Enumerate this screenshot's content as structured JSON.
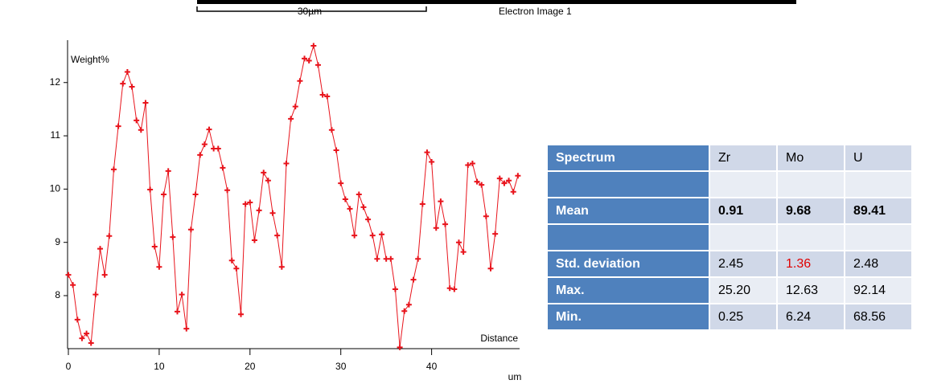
{
  "header": {
    "scale_label": "30µm",
    "image_label": "Electron Image 1"
  },
  "chart_data": {
    "type": "line",
    "y_label": "Weight%",
    "x_label": "Distance",
    "x_unit": "um",
    "x": [
      0,
      0.5,
      1,
      1.5,
      2,
      2.5,
      3,
      3.5,
      4,
      4.5,
      5,
      5.5,
      6,
      6.5,
      7,
      7.5,
      8,
      8.5,
      9,
      9.5,
      10,
      10.5,
      11,
      11.5,
      12,
      12.5,
      13,
      13.5,
      14,
      14.5,
      15,
      15.5,
      16,
      16.5,
      17,
      17.5,
      18,
      18.5,
      19,
      19.5,
      20,
      20.5,
      21,
      21.5,
      22,
      22.5,
      23,
      23.5,
      24,
      24.5,
      25,
      25.5,
      26,
      26.5,
      27,
      27.5,
      28,
      28.5,
      29,
      29.5,
      30,
      30.5,
      31,
      31.5,
      32,
      32.5,
      33,
      33.5,
      34,
      34.5,
      35,
      35.5,
      36,
      36.5,
      37,
      37.5,
      38,
      38.5,
      39,
      39.5,
      40,
      40.5,
      41,
      41.5,
      42,
      42.5,
      43,
      43.5,
      44,
      44.5,
      45,
      45.5,
      46,
      46.5,
      47,
      47.5,
      48,
      48.5,
      49,
      49.5
    ],
    "series": [
      {
        "name": "Weight%",
        "color": "#e8141c",
        "values": [
          8.39,
          8.2,
          7.55,
          7.2,
          7.29,
          7.11,
          8.02,
          8.88,
          8.39,
          9.12,
          10.37,
          11.18,
          11.98,
          12.2,
          11.92,
          11.29,
          11.11,
          11.62,
          9.99,
          8.92,
          8.54,
          9.9,
          10.34,
          9.1,
          7.7,
          8.02,
          7.38,
          9.24,
          9.9,
          10.64,
          10.84,
          11.12,
          10.76,
          10.76,
          10.4,
          9.98,
          8.66,
          8.51,
          7.65,
          9.72,
          9.75,
          9.04,
          9.6,
          10.31,
          10.16,
          9.55,
          9.13,
          8.54,
          10.48,
          11.32,
          11.55,
          12.03,
          12.45,
          12.41,
          12.69,
          12.33,
          11.77,
          11.74,
          11.11,
          10.73,
          10.11,
          9.81,
          9.63,
          9.13,
          9.9,
          9.66,
          9.43,
          9.13,
          8.69,
          9.15,
          8.69,
          8.69,
          8.12,
          7.03,
          7.71,
          7.83,
          8.3,
          8.69,
          9.72,
          10.69,
          10.51,
          9.27,
          9.77,
          9.34,
          8.14,
          8.12,
          9.0,
          8.82,
          10.45,
          10.48,
          10.14,
          10.08,
          9.49,
          8.51,
          9.16,
          10.2,
          10.11,
          10.16,
          9.95,
          10.25
        ]
      }
    ],
    "xlim": [
      0,
      49.6
    ],
    "ylim": [
      7.02,
      12.72
    ],
    "xticks": [
      0,
      10,
      20,
      30,
      40
    ],
    "yticks": [
      8,
      9,
      10,
      11,
      12
    ]
  },
  "table": {
    "columns": [
      "Spectrum",
      "Zr",
      "Mo",
      "U"
    ],
    "rows": [
      [
        "Mean",
        "0.91",
        "9.68",
        "89.41"
      ],
      [
        "Std. deviation",
        "2.45",
        "1.36",
        "2.48"
      ],
      [
        "Max.",
        "25.20",
        "12.63",
        "92.14"
      ],
      [
        "Min.",
        "0.25",
        "6.24",
        "68.56"
      ]
    ]
  }
}
